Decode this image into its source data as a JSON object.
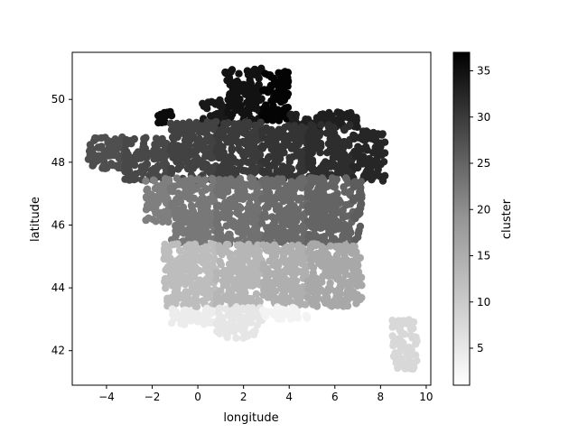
{
  "chart_data": {
    "type": "scatter",
    "title": "",
    "xlabel": "longitude",
    "ylabel": "latitude",
    "xlim": [
      -5.5,
      10.2
    ],
    "ylim": [
      40.9,
      51.5
    ],
    "xticks": [
      -4,
      -2,
      0,
      2,
      4,
      6,
      8,
      10
    ],
    "yticks": [
      42,
      44,
      46,
      48,
      50
    ],
    "colorbar": {
      "label": "cluster",
      "range": [
        1,
        37
      ],
      "ticks": [
        5,
        10,
        15,
        20,
        25,
        30,
        35
      ],
      "colormap": "Greys"
    },
    "grid": false,
    "legend": "none",
    "regions": [
      {
        "cluster": 35,
        "lon_min": 1.2,
        "lon_max": 2.8,
        "lat_min": 49.3,
        "lat_max": 51.0
      },
      {
        "cluster": 37,
        "lon_min": 2.8,
        "lon_max": 4.0,
        "lat_min": 49.3,
        "lat_max": 50.9
      },
      {
        "cluster": 34,
        "lon_min": 0.2,
        "lon_max": 1.2,
        "lat_min": 49.2,
        "lat_max": 50.0
      },
      {
        "cluster": 36,
        "lon_min": -1.9,
        "lon_max": -1.1,
        "lat_min": 49.2,
        "lat_max": 49.7
      },
      {
        "cluster": 33,
        "lon_min": 4.0,
        "lon_max": 7.0,
        "lat_min": 49.1,
        "lat_max": 49.6
      },
      {
        "cluster": 26,
        "lon_min": -4.8,
        "lon_max": -3.2,
        "lat_min": 47.8,
        "lat_max": 48.8
      },
      {
        "cluster": 27,
        "lon_min": -3.2,
        "lon_max": -1.2,
        "lat_min": 47.4,
        "lat_max": 48.8
      },
      {
        "cluster": 28,
        "lon_min": -1.2,
        "lon_max": 0.8,
        "lat_min": 47.4,
        "lat_max": 49.3
      },
      {
        "cluster": 29,
        "lon_min": 0.8,
        "lon_max": 2.8,
        "lat_min": 47.4,
        "lat_max": 49.3
      },
      {
        "cluster": 30,
        "lon_min": 2.8,
        "lon_max": 4.8,
        "lat_min": 47.4,
        "lat_max": 49.2
      },
      {
        "cluster": 31,
        "lon_min": 4.8,
        "lon_max": 6.8,
        "lat_min": 47.4,
        "lat_max": 49.2
      },
      {
        "cluster": 32,
        "lon_min": 6.8,
        "lon_max": 8.2,
        "lat_min": 47.4,
        "lat_max": 49.0
      },
      {
        "cluster": 19,
        "lon_min": -2.3,
        "lon_max": -1.2,
        "lat_min": 46.1,
        "lat_max": 47.5
      },
      {
        "cluster": 20,
        "lon_min": -1.2,
        "lon_max": 0.8,
        "lat_min": 45.4,
        "lat_max": 47.5
      },
      {
        "cluster": 21,
        "lon_min": 0.8,
        "lon_max": 2.8,
        "lat_min": 45.4,
        "lat_max": 47.5
      },
      {
        "cluster": 22,
        "lon_min": 2.8,
        "lon_max": 4.8,
        "lat_min": 45.4,
        "lat_max": 47.5
      },
      {
        "cluster": 23,
        "lon_min": 4.8,
        "lon_max": 6.8,
        "lat_min": 45.4,
        "lat_max": 47.5
      },
      {
        "cluster": 24,
        "lon_min": 6.8,
        "lon_max": 7.2,
        "lat_min": 45.5,
        "lat_max": 47.5
      },
      {
        "cluster": 10,
        "lon_min": -1.5,
        "lon_max": 0.8,
        "lat_min": 43.4,
        "lat_max": 45.4
      },
      {
        "cluster": 11,
        "lon_min": 0.8,
        "lon_max": 2.8,
        "lat_min": 43.4,
        "lat_max": 45.4
      },
      {
        "cluster": 12,
        "lon_min": 2.8,
        "lon_max": 4.8,
        "lat_min": 43.4,
        "lat_max": 45.4
      },
      {
        "cluster": 13,
        "lon_min": 4.8,
        "lon_max": 7.2,
        "lat_min": 43.4,
        "lat_max": 45.4
      },
      {
        "cluster": 3,
        "lon_min": -1.2,
        "lon_max": 0.8,
        "lat_min": 42.8,
        "lat_max": 43.4
      },
      {
        "cluster": 4,
        "lon_min": 0.8,
        "lon_max": 2.8,
        "lat_min": 42.4,
        "lat_max": 43.4
      },
      {
        "cluster": 2,
        "lon_min": 2.8,
        "lon_max": 4.8,
        "lat_min": 43.0,
        "lat_max": 43.4
      },
      {
        "cluster": 6,
        "lon_min": 8.5,
        "lon_max": 9.6,
        "lat_min": 41.4,
        "lat_max": 43.0
      }
    ]
  }
}
